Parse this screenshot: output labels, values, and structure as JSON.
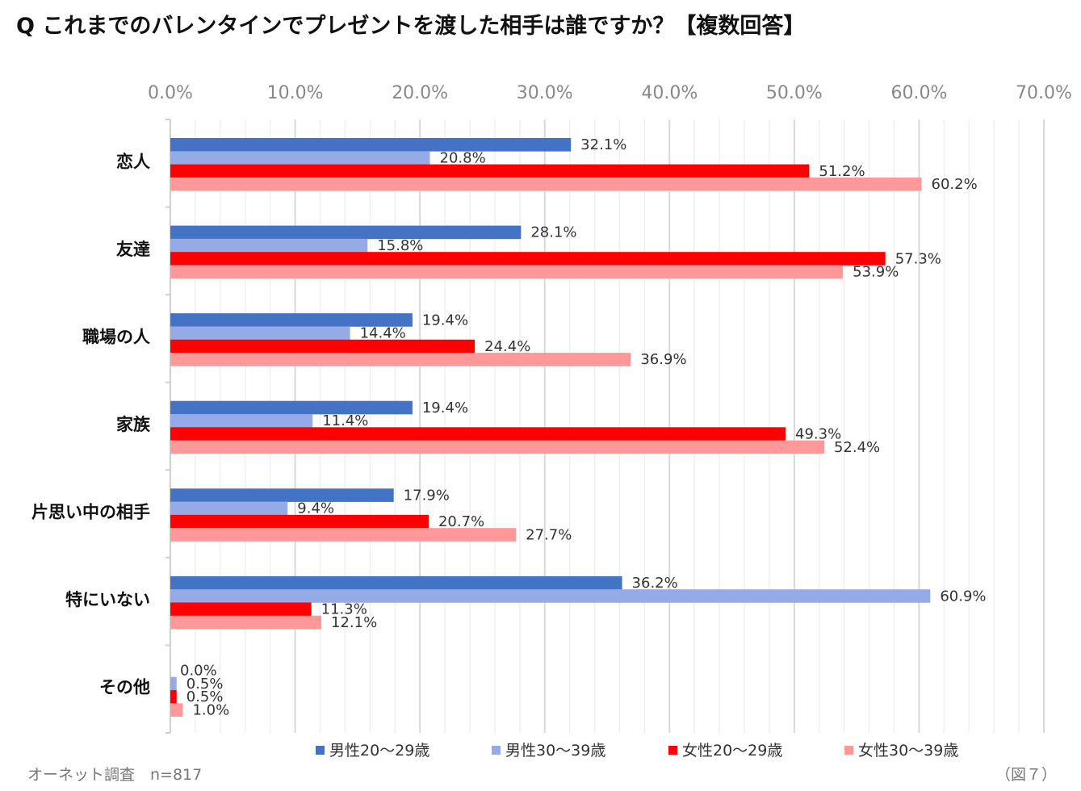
{
  "title": "Q これまでのバレンタインでプレゼントを渡した相手は誰ですか？【複数回答】",
  "source": "オーネット調査　n=817",
  "figure_label": "（図７）",
  "chart_data": {
    "type": "bar",
    "orientation": "horizontal",
    "categories": [
      "恋人",
      "友達",
      "職場の人",
      "家族",
      "片思い中の相手",
      "特にいない",
      "その他"
    ],
    "series": [
      {
        "name": "男性20〜29歳",
        "color": "#4472C4",
        "values": [
          32.1,
          28.1,
          19.4,
          19.4,
          17.9,
          36.2,
          0.0
        ]
      },
      {
        "name": "男性30〜39歳",
        "color": "#95ABE8",
        "values": [
          20.8,
          15.8,
          14.4,
          11.4,
          9.4,
          60.9,
          0.5
        ]
      },
      {
        "name": "女性20〜29歳",
        "color": "#FF0000",
        "values": [
          51.2,
          57.3,
          24.4,
          49.3,
          20.7,
          11.3,
          0.5
        ]
      },
      {
        "name": "女性30〜39歳",
        "color": "#FF9999",
        "values": [
          60.2,
          53.9,
          36.9,
          52.4,
          27.7,
          12.1,
          1.0
        ]
      }
    ],
    "xlim": [
      0,
      70
    ],
    "xticks": [
      "0.0%",
      "10.0%",
      "20.0%",
      "30.0%",
      "40.0%",
      "50.0%",
      "60.0%",
      "70.0%"
    ],
    "x_axis_position": "top",
    "grid": true,
    "legend": "bottom",
    "value_suffix": "%"
  }
}
